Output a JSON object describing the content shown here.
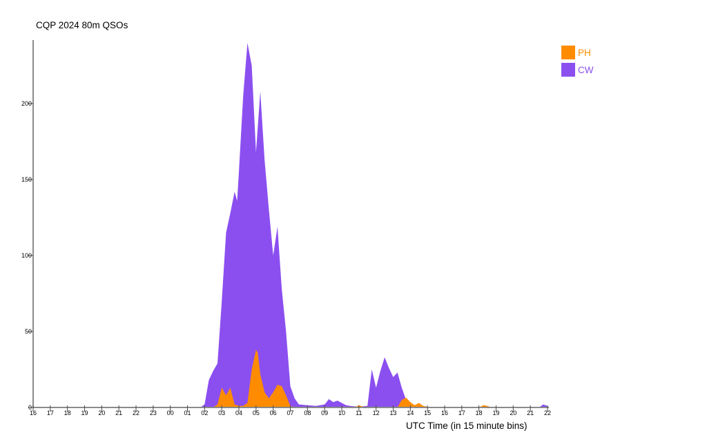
{
  "title": "CQP 2024 80m QSOs",
  "axes": {
    "x_label": "UTC Time (in 15 minute bins)",
    "y_ticks": [
      0,
      50,
      100,
      150,
      200
    ],
    "x_tick_labels": [
      "16",
      "17",
      "18",
      "19",
      "20",
      "21",
      "22",
      "23",
      "00",
      "01",
      "02",
      "03",
      "04",
      "05",
      "06",
      "07",
      "08",
      "09",
      "10",
      "11",
      "12",
      "13",
      "14",
      "15",
      "16",
      "17",
      "18",
      "19",
      "20",
      "21",
      "22"
    ]
  },
  "legend": [
    {
      "label": "PH",
      "color": "#FF8C00"
    },
    {
      "label": "CW",
      "color": "#8B4FF0"
    }
  ],
  "colors": {
    "axis": "#8a8a8a",
    "tick": "#4a4a4a",
    "text": "#000000",
    "background": "#ffffff",
    "ph": "#FF8C00",
    "cw": "#8B4FF0"
  },
  "chart_data": {
    "type": "area",
    "title": "CQP 2024 80m QSOs",
    "xlabel": "UTC Time (in 15 minute bins)",
    "ylabel": "",
    "x_unit": "hours elapsed since 16:00 UTC; axis spans 16:00 UTC to 22:00 UTC next day in 15-minute bins",
    "x_range_hours": [
      0,
      30
    ],
    "ylim": [
      0,
      245
    ],
    "grid": false,
    "legend_position": "top-right",
    "overlay": "series drawn from zero baseline, PH painted over CW",
    "series": [
      {
        "name": "CW",
        "color": "#8B4FF0",
        "points": [
          [
            0,
            0
          ],
          [
            9.75,
            0
          ],
          [
            10,
            2
          ],
          [
            10.25,
            18
          ],
          [
            10.5,
            24
          ],
          [
            10.75,
            29
          ],
          [
            11,
            70
          ],
          [
            11.25,
            115
          ],
          [
            11.5,
            128
          ],
          [
            11.75,
            142
          ],
          [
            11.9,
            136
          ],
          [
            12,
            155
          ],
          [
            12.25,
            205
          ],
          [
            12.5,
            240
          ],
          [
            12.75,
            225
          ],
          [
            13,
            168
          ],
          [
            13.25,
            208
          ],
          [
            13.5,
            163
          ],
          [
            13.75,
            130
          ],
          [
            14,
            100
          ],
          [
            14.25,
            119
          ],
          [
            14.5,
            78
          ],
          [
            14.75,
            50
          ],
          [
            15,
            14
          ],
          [
            15.25,
            6
          ],
          [
            15.5,
            2
          ],
          [
            16,
            1.5
          ],
          [
            16.5,
            1
          ],
          [
            17,
            2
          ],
          [
            17.25,
            5.5
          ],
          [
            17.5,
            3.5
          ],
          [
            17.75,
            4.5
          ],
          [
            18,
            3
          ],
          [
            18.25,
            1.5
          ],
          [
            18.5,
            1
          ],
          [
            19,
            0.5
          ],
          [
            19.5,
            1
          ],
          [
            19.75,
            25
          ],
          [
            20,
            13
          ],
          [
            20.25,
            24
          ],
          [
            20.5,
            33
          ],
          [
            20.75,
            26
          ],
          [
            21,
            20
          ],
          [
            21.25,
            23
          ],
          [
            21.5,
            13
          ],
          [
            21.75,
            5
          ],
          [
            22,
            1
          ],
          [
            22.25,
            0
          ],
          [
            29.5,
            0
          ],
          [
            29.75,
            2
          ],
          [
            30,
            1
          ]
        ]
      },
      {
        "name": "PH",
        "color": "#FF8C00",
        "points": [
          [
            0,
            0
          ],
          [
            10.5,
            0
          ],
          [
            10.75,
            2
          ],
          [
            11,
            13
          ],
          [
            11.25,
            8
          ],
          [
            11.5,
            13
          ],
          [
            11.75,
            2
          ],
          [
            12,
            1
          ],
          [
            12.25,
            1
          ],
          [
            12.5,
            3
          ],
          [
            12.75,
            25
          ],
          [
            13,
            38
          ],
          [
            13.1,
            36
          ],
          [
            13.25,
            22
          ],
          [
            13.5,
            10
          ],
          [
            13.75,
            6
          ],
          [
            14,
            10
          ],
          [
            14.25,
            15
          ],
          [
            14.5,
            14
          ],
          [
            14.75,
            8
          ],
          [
            15,
            1
          ],
          [
            15.25,
            0
          ],
          [
            18.75,
            0
          ],
          [
            19,
            1.5
          ],
          [
            19.25,
            0.5
          ],
          [
            19.5,
            0
          ],
          [
            21.25,
            0
          ],
          [
            21.5,
            5
          ],
          [
            21.75,
            6.5
          ],
          [
            22,
            3.5
          ],
          [
            22.25,
            1.5
          ],
          [
            22.5,
            3
          ],
          [
            22.75,
            1
          ],
          [
            23,
            0.5
          ],
          [
            23.25,
            0
          ],
          [
            26,
            0
          ],
          [
            26.25,
            1.5
          ],
          [
            26.5,
            1
          ],
          [
            26.75,
            0
          ],
          [
            30,
            0
          ]
        ]
      }
    ]
  }
}
